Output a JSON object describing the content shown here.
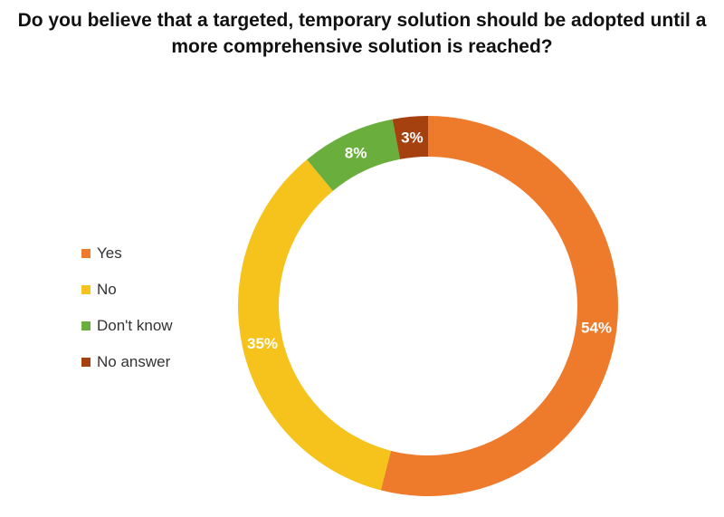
{
  "chart_data": {
    "type": "pie",
    "donut": true,
    "title": "Do you believe that a targeted, temporary solution should be adopted until a more comprehensive solution is reached?",
    "categories": [
      "Yes",
      "No",
      "Don't know",
      "No answer"
    ],
    "values": [
      54,
      35,
      8,
      3
    ],
    "labels": [
      "54%",
      "35%",
      "8%",
      "3%"
    ],
    "colors": [
      "#EE7B2C",
      "#F6C21C",
      "#6AAE3E",
      "#A5410F"
    ],
    "legend_position": "left"
  }
}
